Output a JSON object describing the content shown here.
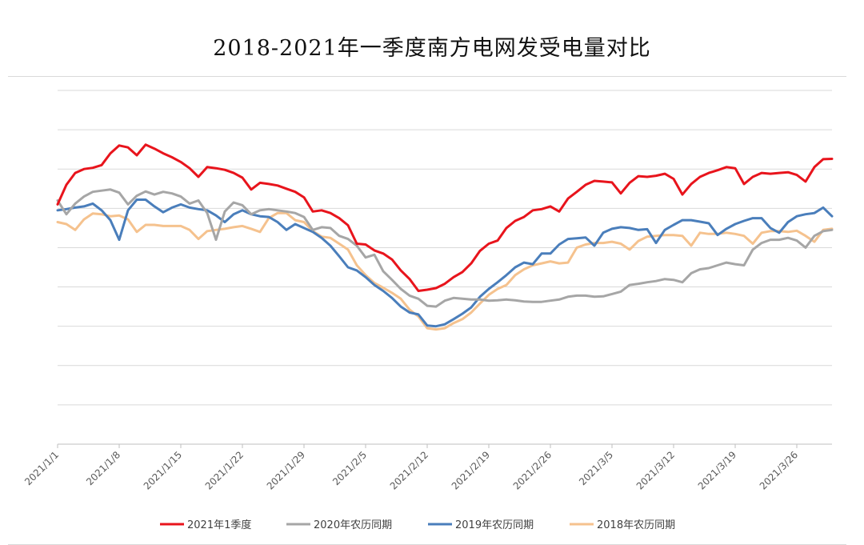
{
  "chart_data": {
    "type": "line",
    "title": "2018-2021年一季度南方电网发受电量对比",
    "xlabel": "",
    "ylabel": "",
    "grid": true,
    "legend_position": "bottom",
    "y_axis_labels_visible": false,
    "x_tick_labels": [
      "2021/1/1",
      "2021/1/8",
      "2021/1/15",
      "2021/1/22",
      "2021/1/29",
      "2021/2/5",
      "2021/2/12",
      "2021/2/19",
      "2021/2/26",
      "2021/3/5",
      "2021/3/12",
      "2021/3/19",
      "2021/3/26"
    ],
    "x_start": "2021/1/1",
    "x_end": "2021/3/31",
    "ylim": [
      0,
      9
    ],
    "series": [
      {
        "name": "2021年1季度",
        "color": "#e8141c",
        "values": [
          6.1,
          6.6,
          6.9,
          7.0,
          7.03,
          7.1,
          7.4,
          7.6,
          7.55,
          7.35,
          7.62,
          7.52,
          7.4,
          7.3,
          7.18,
          7.02,
          6.8,
          7.05,
          7.02,
          6.98,
          6.9,
          6.78,
          6.48,
          6.65,
          6.62,
          6.58,
          6.5,
          6.42,
          6.28,
          5.92,
          5.95,
          5.88,
          5.75,
          5.57,
          5.1,
          5.08,
          4.93,
          4.85,
          4.7,
          4.42,
          4.2,
          3.9,
          3.93,
          3.97,
          4.08,
          4.25,
          4.38,
          4.6,
          4.92,
          5.1,
          5.18,
          5.5,
          5.68,
          5.78,
          5.95,
          5.98,
          6.05,
          5.92,
          6.25,
          6.42,
          6.6,
          6.7,
          6.68,
          6.66,
          6.38,
          6.65,
          6.82,
          6.8,
          6.83,
          6.88,
          6.75,
          6.35,
          6.62,
          6.8,
          6.9,
          6.97,
          7.05,
          7.02,
          6.62,
          6.8,
          6.9,
          6.88,
          6.9,
          6.92,
          6.85,
          6.68,
          7.05,
          7.25,
          7.26
        ]
      },
      {
        "name": "2020年农历同期",
        "color": "#a6a6a6",
        "values": [
          6.2,
          5.85,
          6.12,
          6.3,
          6.42,
          6.45,
          6.48,
          6.4,
          6.1,
          6.32,
          6.43,
          6.35,
          6.42,
          6.38,
          6.3,
          6.12,
          6.2,
          5.88,
          5.2,
          5.92,
          6.15,
          6.08,
          5.85,
          5.95,
          5.98,
          5.95,
          5.92,
          5.88,
          5.78,
          5.45,
          5.52,
          5.5,
          5.3,
          5.22,
          5.05,
          4.75,
          4.82,
          4.4,
          4.18,
          3.95,
          3.78,
          3.7,
          3.52,
          3.5,
          3.65,
          3.72,
          3.7,
          3.68,
          3.68,
          3.65,
          3.66,
          3.68,
          3.66,
          3.63,
          3.62,
          3.62,
          3.65,
          3.68,
          3.75,
          3.78,
          3.78,
          3.75,
          3.76,
          3.82,
          3.88,
          4.05,
          4.08,
          4.12,
          4.15,
          4.2,
          4.18,
          4.12,
          4.35,
          4.45,
          4.48,
          4.55,
          4.62,
          4.58,
          4.55,
          4.95,
          5.12,
          5.2,
          5.2,
          5.25,
          5.18,
          5.0,
          5.3,
          5.42,
          5.45
        ]
      },
      {
        "name": "2019年农历同期",
        "color": "#4a7ebb",
        "values": [
          5.95,
          5.98,
          6.02,
          6.05,
          6.12,
          5.95,
          5.7,
          5.2,
          5.95,
          6.22,
          6.22,
          6.05,
          5.9,
          6.02,
          6.1,
          6.02,
          5.98,
          5.95,
          5.82,
          5.65,
          5.85,
          5.95,
          5.85,
          5.8,
          5.78,
          5.65,
          5.45,
          5.6,
          5.5,
          5.4,
          5.25,
          5.05,
          4.78,
          4.5,
          4.42,
          4.25,
          4.05,
          3.9,
          3.72,
          3.5,
          3.35,
          3.3,
          3.02,
          3.0,
          3.05,
          3.18,
          3.32,
          3.48,
          3.75,
          3.95,
          4.12,
          4.3,
          4.5,
          4.62,
          4.58,
          4.85,
          4.85,
          5.08,
          5.22,
          5.24,
          5.26,
          5.05,
          5.38,
          5.48,
          5.52,
          5.5,
          5.45,
          5.47,
          5.12,
          5.45,
          5.58,
          5.7,
          5.7,
          5.66,
          5.62,
          5.32,
          5.48,
          5.6,
          5.68,
          5.75,
          5.75,
          5.5,
          5.38,
          5.65,
          5.8,
          5.85,
          5.88,
          6.02,
          5.8
        ]
      },
      {
        "name": "2018年农历同期",
        "color": "#f5c28e",
        "values": [
          5.65,
          5.6,
          5.45,
          5.72,
          5.87,
          5.85,
          5.8,
          5.82,
          5.72,
          5.4,
          5.58,
          5.58,
          5.55,
          5.55,
          5.55,
          5.45,
          5.22,
          5.42,
          5.45,
          5.48,
          5.52,
          5.55,
          5.48,
          5.4,
          5.75,
          5.88,
          5.88,
          5.7,
          5.65,
          5.42,
          5.28,
          5.25,
          5.1,
          4.95,
          4.55,
          4.3,
          4.1,
          3.98,
          3.85,
          3.7,
          3.42,
          3.25,
          2.95,
          2.92,
          2.95,
          3.08,
          3.18,
          3.35,
          3.58,
          3.8,
          3.95,
          4.05,
          4.3,
          4.45,
          4.55,
          4.6,
          4.65,
          4.6,
          4.62,
          5.0,
          5.08,
          5.12,
          5.12,
          5.15,
          5.1,
          4.95,
          5.17,
          5.28,
          5.3,
          5.32,
          5.32,
          5.3,
          5.05,
          5.38,
          5.35,
          5.35,
          5.38,
          5.35,
          5.3,
          5.1,
          5.38,
          5.42,
          5.42,
          5.4,
          5.43,
          5.3,
          5.15,
          5.45,
          5.48
        ]
      }
    ]
  }
}
